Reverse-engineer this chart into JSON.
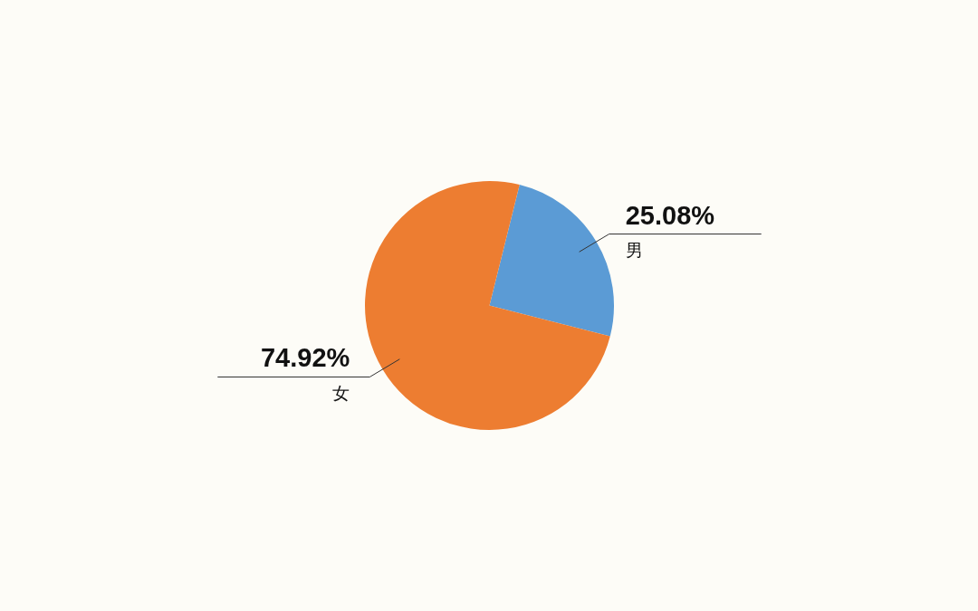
{
  "chart_data": {
    "type": "pie",
    "categories": [
      "男",
      "女"
    ],
    "values": [
      25.08,
      74.92
    ],
    "colors": [
      "#5b9bd5",
      "#ed7d31"
    ],
    "value_labels": [
      "25.08%",
      "74.92%"
    ],
    "legend": false
  }
}
